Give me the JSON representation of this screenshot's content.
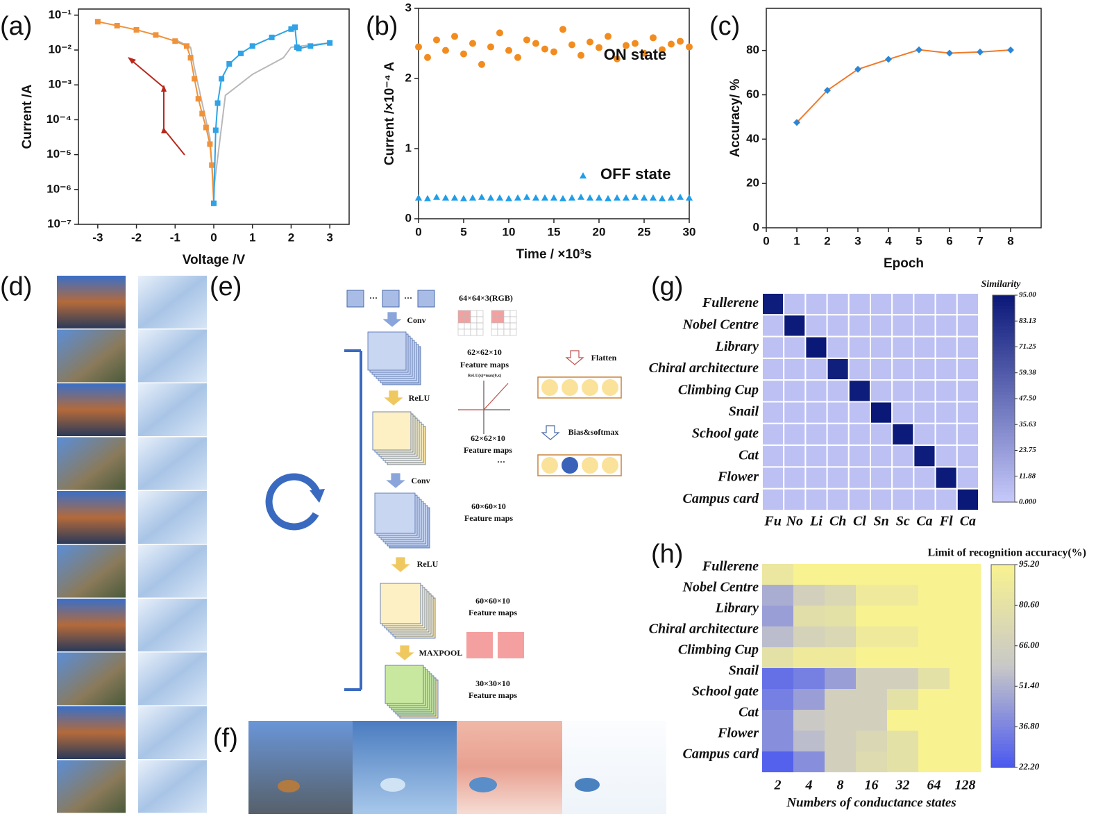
{
  "panel_labels": [
    "(a)",
    "(b)",
    "(c)",
    "(d)",
    "(e)",
    "(f)",
    "(g)",
    "(h)"
  ],
  "chart_data": [
    {
      "type": "line",
      "ylog": true,
      "x_label": "Voltage /V",
      "y_label": "Current /A",
      "xlim": [
        -3.5,
        3.5
      ],
      "xticks": [
        -3,
        -2,
        -1,
        0,
        1,
        2,
        3
      ],
      "ylim": [
        1e-07,
        0.15
      ],
      "yticks": [
        {
          "value": 1e-07,
          "label": "10⁻⁷"
        },
        {
          "value": 1e-06,
          "label": "10⁻⁶"
        },
        {
          "value": 1e-05,
          "label": "10⁻⁵"
        },
        {
          "value": 0.0001,
          "label": "10⁻⁴"
        },
        {
          "value": 0.001,
          "label": "10⁻³"
        },
        {
          "value": 0.01,
          "label": "10⁻²"
        },
        {
          "value": 0.1,
          "label": "10⁻¹"
        }
      ],
      "series": [
        {
          "color": "#b8b8b8",
          "marker": "none",
          "x": [
            -1,
            -0.6,
            -0.5,
            -0.3,
            -0.1,
            0,
            0.3,
            1,
            1.8,
            2,
            2.5,
            3
          ],
          "values": [
            0.02,
            0.012,
            0.003,
            0.0003,
            3e-05,
            1e-06,
            0.0005,
            0.002,
            0.006,
            0.012,
            0.014,
            0.016
          ]
        },
        {
          "color": "#f0923a",
          "marker": "square",
          "x": [
            -3,
            -2.5,
            -2,
            -1.5,
            -1,
            -0.7,
            -0.6,
            -0.5,
            -0.4,
            -0.3,
            -0.2,
            -0.1,
            -0.05,
            0
          ],
          "values": [
            0.065,
            0.05,
            0.038,
            0.027,
            0.018,
            0.013,
            0.006,
            0.0015,
            0.0004,
            0.00015,
            6e-05,
            2e-05,
            5e-06,
            4e-07
          ]
        },
        {
          "color": "#2fa3e6",
          "marker": "square",
          "x": [
            0,
            0.05,
            0.1,
            0.2,
            0.4,
            0.7,
            1,
            1.5,
            2,
            2.1,
            2.15,
            2.2,
            2.5,
            3
          ],
          "values": [
            4e-07,
            5e-05,
            0.0003,
            0.0015,
            0.004,
            0.008,
            0.013,
            0.023,
            0.04,
            0.045,
            0.012,
            0.011,
            0.013,
            0.016
          ]
        }
      ]
    },
    {
      "type": "scatter",
      "x_label": "Time / ×10³s",
      "y_label": "Current /×10⁻⁴ A",
      "xlim": [
        0,
        30
      ],
      "xticks": [
        0,
        5,
        10,
        15,
        20,
        25,
        30
      ],
      "ylim": [
        0,
        3
      ],
      "yticks": [
        0,
        1,
        2,
        3
      ],
      "x": [
        0,
        1,
        2,
        3,
        4,
        5,
        6,
        7,
        8,
        9,
        10,
        11,
        12,
        13,
        14,
        15,
        16,
        17,
        18,
        19,
        20,
        21,
        22,
        23,
        24,
        25,
        26,
        27,
        28,
        29,
        30
      ],
      "series": [
        {
          "name": "ON state",
          "color": "#f28c1e",
          "marker": "circle",
          "values": [
            2.45,
            2.3,
            2.55,
            2.4,
            2.6,
            2.35,
            2.5,
            2.2,
            2.45,
            2.65,
            2.4,
            2.3,
            2.55,
            2.5,
            2.42,
            2.38,
            2.7,
            2.48,
            2.33,
            2.52,
            2.44,
            2.6,
            2.28,
            2.47,
            2.5,
            2.36,
            2.58,
            2.41,
            2.49,
            2.53,
            2.45
          ]
        },
        {
          "name": "OFF state",
          "color": "#1e9ee8",
          "marker": "triangle",
          "values": [
            0.3,
            0.29,
            0.31,
            0.3,
            0.3,
            0.29,
            0.3,
            0.31,
            0.3,
            0.3,
            0.29,
            0.3,
            0.31,
            0.3,
            0.3,
            0.3,
            0.29,
            0.3,
            0.31,
            0.3,
            0.3,
            0.29,
            0.3,
            0.3,
            0.31,
            0.3,
            0.3,
            0.29,
            0.3,
            0.31,
            0.3
          ]
        }
      ]
    },
    {
      "type": "line",
      "x_label": "Epoch",
      "y_label": "Accuracy/ %",
      "xlim": [
        0,
        9
      ],
      "xticks": [
        0,
        1,
        2,
        3,
        4,
        5,
        6,
        7,
        8
      ],
      "ylim": [
        0,
        99
      ],
      "yticks": [
        0,
        20,
        40,
        60,
        80
      ],
      "series": [
        {
          "color": "#f07a28",
          "marker": "diamond",
          "marker_color": "#2a86d6",
          "x": [
            1,
            2,
            3,
            4,
            5,
            6,
            7,
            8
          ],
          "values": [
            47.5,
            62,
            71.5,
            76,
            80.3,
            78.8,
            79.3,
            80.2
          ]
        }
      ]
    },
    {
      "type": "heatmap",
      "colorbar_title": "Similarity",
      "y_categories": [
        "Fullerene",
        "Nobel Centre",
        "Library",
        "Chiral architecture",
        "Climbing Cup",
        "Snail",
        "School gate",
        "Cat",
        "Flower",
        "Campus card"
      ],
      "x_categories": [
        "Fu",
        "No",
        "Li",
        "Ch",
        "Cl",
        "Sn",
        "Sc",
        "Ca",
        "Fl",
        "Ca"
      ],
      "zlim": [
        0,
        95
      ],
      "colorscale": [
        "#c6c9fa",
        "#0a1878"
      ],
      "zticks": [
        {
          "value": 95,
          "label": "95.00"
        },
        {
          "value": 83.13,
          "label": "83.13"
        },
        {
          "value": 71.25,
          "label": "71.25"
        },
        {
          "value": 59.38,
          "label": "59.38"
        },
        {
          "value": 47.5,
          "label": "47.50"
        },
        {
          "value": 35.63,
          "label": "35.63"
        },
        {
          "value": 23.75,
          "label": "23.75"
        },
        {
          "value": 11.88,
          "label": "11.88"
        },
        {
          "value": 0,
          "label": "0.000"
        }
      ],
      "values": [
        [
          93,
          5,
          5,
          5,
          5,
          5,
          5,
          5,
          5,
          5
        ],
        [
          5,
          94,
          5,
          5,
          5,
          5,
          5,
          5,
          5,
          5
        ],
        [
          5,
          5,
          95,
          5,
          5,
          5,
          5,
          5,
          5,
          5
        ],
        [
          5,
          5,
          5,
          92,
          5,
          5,
          5,
          5,
          5,
          5
        ],
        [
          5,
          5,
          5,
          5,
          93,
          5,
          5,
          5,
          5,
          5
        ],
        [
          5,
          5,
          5,
          5,
          5,
          95,
          5,
          5,
          5,
          5
        ],
        [
          5,
          5,
          5,
          5,
          5,
          5,
          94,
          5,
          5,
          5
        ],
        [
          5,
          5,
          5,
          5,
          5,
          5,
          5,
          93,
          5,
          5
        ],
        [
          5,
          5,
          5,
          5,
          5,
          5,
          5,
          5,
          94,
          5
        ],
        [
          5,
          5,
          5,
          5,
          5,
          5,
          5,
          5,
          5,
          95
        ]
      ]
    },
    {
      "type": "heatmap",
      "colorbar_title": "Limit of recognition accuracy(%)",
      "x_label": "Numbers of conductance states",
      "y_categories": [
        "Fullerene",
        "Nobel Centre",
        "Library",
        "Chiral architecture",
        "Climbing Cup",
        "Snail",
        "School gate",
        "Cat",
        "Flower",
        "Campus card"
      ],
      "x_categories": [
        "2",
        "4",
        "8",
        "16",
        "32",
        "64",
        "128"
      ],
      "zlim": [
        22.2,
        95.2
      ],
      "colorscale": [
        "#4a58f0",
        "#c8c8c8",
        "#f8f290"
      ],
      "zticks": [
        {
          "value": 95.2,
          "label": "95.20"
        },
        {
          "value": 80.6,
          "label": "80.60"
        },
        {
          "value": 66,
          "label": "66.00"
        },
        {
          "value": 51.4,
          "label": "51.40"
        },
        {
          "value": 36.8,
          "label": "36.80"
        },
        {
          "value": 22.2,
          "label": "22.20"
        }
      ],
      "values": [
        [
          85,
          95,
          95,
          95,
          95,
          95,
          95
        ],
        [
          50,
          66,
          72,
          88,
          88,
          95,
          95
        ],
        [
          45,
          78,
          80,
          95,
          95,
          95,
          95
        ],
        [
          55,
          68,
          72,
          88,
          88,
          95,
          95
        ],
        [
          80,
          88,
          88,
          95,
          95,
          95,
          95
        ],
        [
          30,
          35,
          45,
          66,
          66,
          80,
          95
        ],
        [
          35,
          45,
          66,
          66,
          80,
          95,
          95
        ],
        [
          40,
          60,
          66,
          66,
          95,
          95,
          95
        ],
        [
          40,
          55,
          66,
          72,
          80,
          95,
          95
        ],
        [
          25,
          40,
          66,
          75,
          80,
          95,
          95
        ]
      ]
    }
  ],
  "diagram": {
    "labels": [
      "64×64×3(RGB)",
      "Conv",
      "62×62×10",
      "Feature maps",
      "ReLU(x)=max(0,x)",
      "ReLU",
      "62×62×10",
      "Feature maps",
      "···",
      "Conv",
      "60×60×10",
      "Feature maps",
      "ReLU",
      "60×60×10",
      "Feature maps",
      "MAXPOOL",
      "30×30×10",
      "Feature maps",
      "Flatten",
      "Bias&softmax",
      "···",
      "···"
    ]
  }
}
